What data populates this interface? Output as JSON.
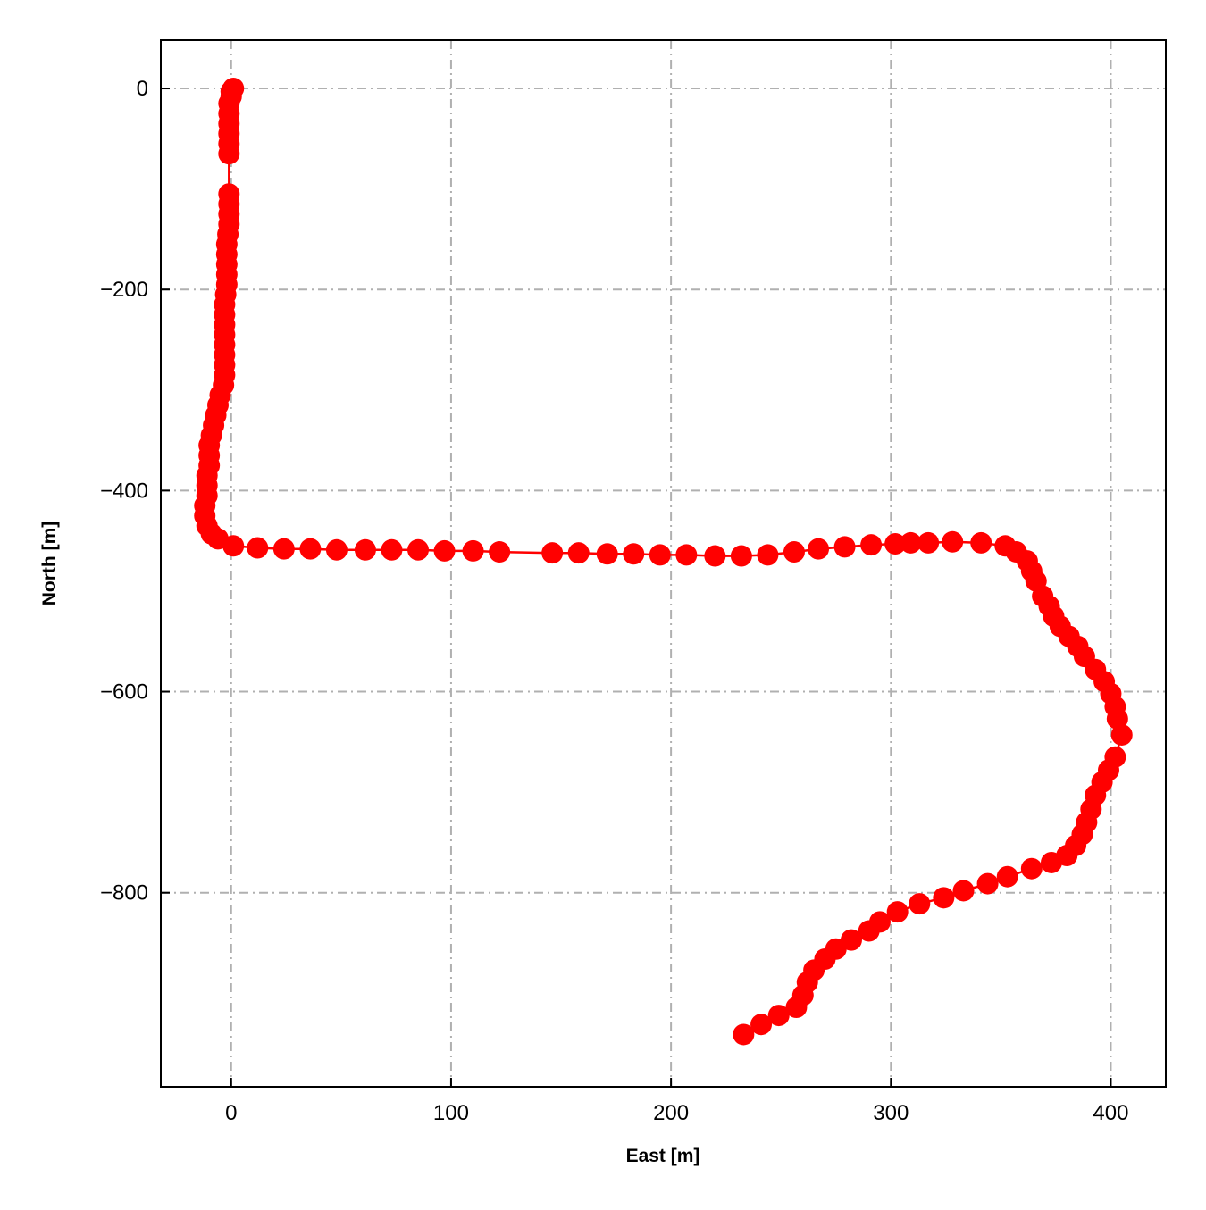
{
  "chart_data": {
    "type": "line",
    "title": "",
    "xlabel": "East [m]",
    "ylabel": "North [m]",
    "xlim": [
      -32,
      425
    ],
    "ylim": [
      -993,
      48
    ],
    "xticks": [
      0,
      100,
      200,
      300,
      400
    ],
    "yticks": [
      0,
      -200,
      -400,
      -600,
      -800
    ],
    "xtick_labels": [
      "0",
      "100",
      "200",
      "300",
      "400"
    ],
    "ytick_labels": [
      "0",
      "−200",
      "−400",
      "−600",
      "−800"
    ],
    "grid": true,
    "grid_style": "dash-dot",
    "marker": "circle",
    "color": "#ff0000",
    "grid_color": "#b0b0b0",
    "series": [
      {
        "x": [
          1,
          0,
          0,
          -1,
          -1,
          -1,
          -1,
          -1,
          -1,
          -1,
          -1,
          -1,
          -1,
          -1.5,
          -2,
          -2,
          -2,
          -2,
          -2,
          -2.5,
          -3,
          -3,
          -3,
          -3,
          -3,
          -3,
          -3,
          -3,
          -3.5,
          -5,
          -6,
          -7,
          -8,
          -9,
          -10,
          -10,
          -10,
          -11,
          -11,
          -11,
          -12,
          -12,
          -11,
          -9,
          -6,
          1,
          12,
          24,
          36,
          48,
          61,
          73,
          85,
          97,
          110,
          122,
          146,
          158,
          171,
          183,
          195,
          207,
          220,
          232,
          244,
          256,
          267,
          279,
          291,
          302,
          309,
          317,
          328,
          341,
          352,
          357,
          362,
          364,
          366,
          369,
          372,
          374,
          377,
          381,
          385,
          388,
          393,
          397,
          400,
          402,
          403,
          405,
          402,
          399,
          396,
          393,
          391,
          389,
          387,
          384,
          380,
          373,
          364,
          353,
          344,
          333,
          324,
          313,
          303,
          295,
          290,
          282,
          275,
          270,
          265,
          262,
          260,
          257,
          249,
          241,
          233
        ],
        "y": [
          0,
          -3,
          -8,
          -15,
          -25,
          -35,
          -45,
          -55,
          -65,
          -105,
          -115,
          -125,
          -135,
          -145,
          -155,
          -165,
          -175,
          -185,
          -195,
          -205,
          -215,
          -225,
          -235,
          -245,
          -255,
          -265,
          -275,
          -285,
          -295,
          -305,
          -315,
          -325,
          -335,
          -345,
          -355,
          -365,
          -375,
          -385,
          -395,
          -405,
          -415,
          -425,
          -435,
          -443,
          -448,
          -455,
          -457,
          -458,
          -458,
          -459,
          -459,
          -459,
          -459,
          -460,
          -460,
          -461,
          -462,
          -462,
          -463,
          -463,
          -464,
          -464,
          -465,
          -465,
          -464,
          -461,
          -458,
          -456,
          -454,
          -453,
          -452,
          -452,
          -451,
          -452,
          -455,
          -461,
          -470,
          -480,
          -490,
          -505,
          -515,
          -525,
          -535,
          -545,
          -555,
          -565,
          -578,
          -590,
          -602,
          -615,
          -627,
          -643,
          -665,
          -678,
          -690,
          -703,
          -717,
          -730,
          -742,
          -753,
          -763,
          -770,
          -776,
          -784,
          -791,
          -798,
          -805,
          -811,
          -819,
          -829,
          -838,
          -847,
          -856,
          -866,
          -877,
          -889,
          -902,
          -914,
          -922,
          -931,
          -941
        ]
      }
    ]
  }
}
